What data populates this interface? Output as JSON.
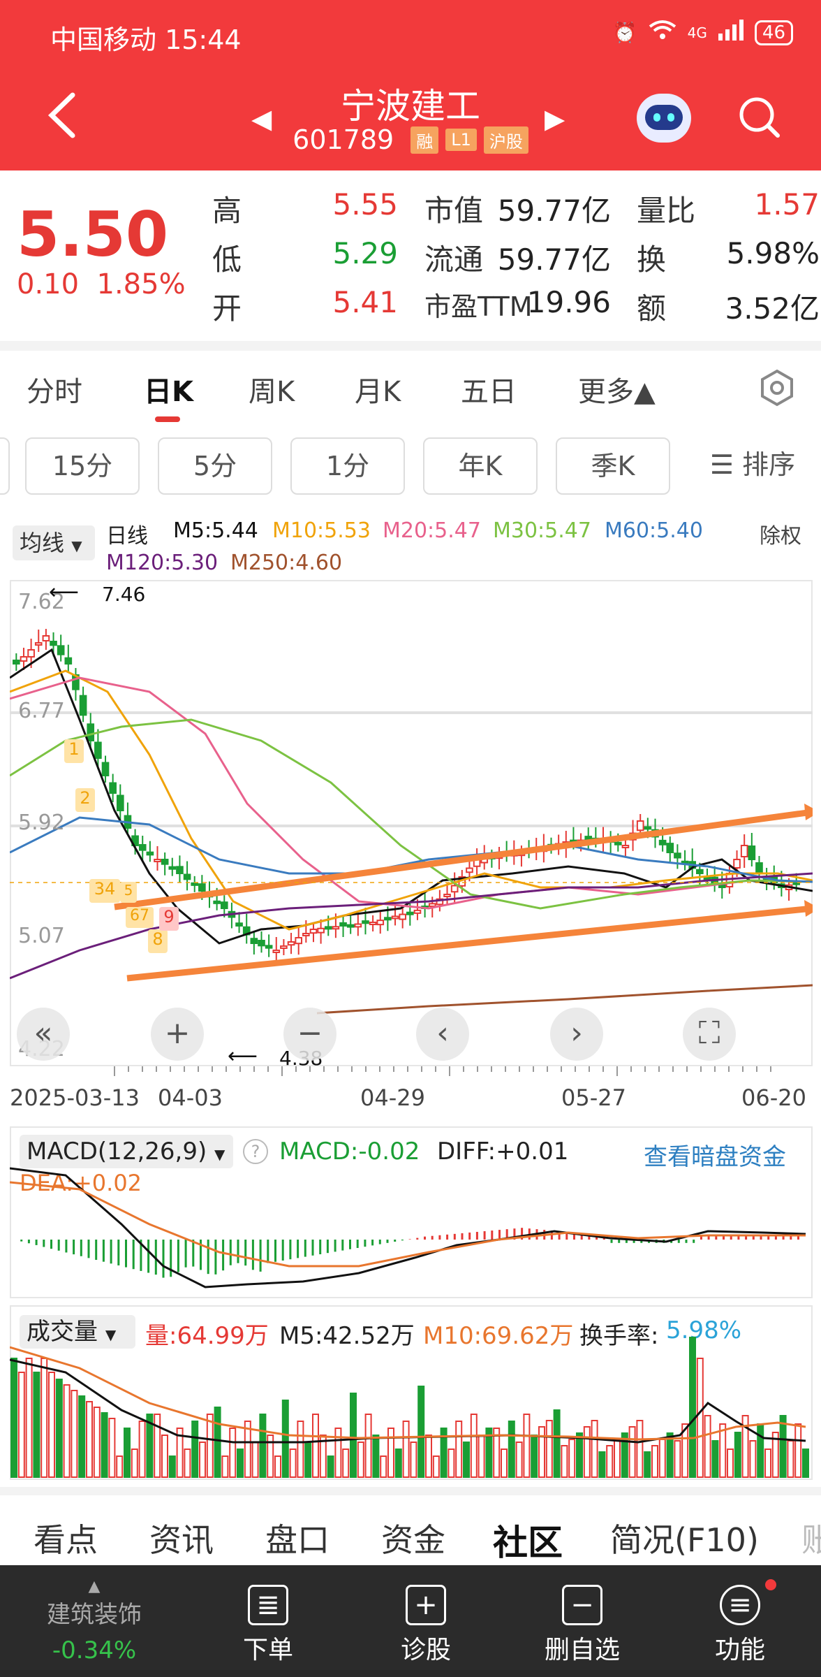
{
  "status_bar": {
    "carrier_time": "中国移动 15:44",
    "network": "4G",
    "battery": "46"
  },
  "header": {
    "stock_name": "宁波建工",
    "stock_code": "601789",
    "tags": [
      "融",
      "L1",
      "沪股"
    ]
  },
  "quote": {
    "price": "5.50",
    "change": "0.10",
    "change_pct": "1.85%",
    "rows": [
      {
        "l1": "高",
        "v1": "5.55",
        "l2": "市值",
        "v2": "59.77亿",
        "l3": "量比",
        "v3": "1.57"
      },
      {
        "l1": "低",
        "v1": "5.29",
        "l2": "流通",
        "v2": "59.77亿",
        "l3": "换",
        "v3": "5.98%"
      },
      {
        "l1": "开",
        "v1": "5.41",
        "l2": "市盈TTM",
        "v2": "19.96",
        "l3": "额",
        "v3": "3.52亿"
      }
    ]
  },
  "period_tabs": [
    "分时",
    "日K",
    "周K",
    "月K",
    "五日",
    "更多▲"
  ],
  "sub_tabs": [
    "15分",
    "5分",
    "1分",
    "年K",
    "季K",
    "☰ 排序"
  ],
  "ma_legend": {
    "selector": "均线",
    "period": "日线",
    "ex_right": "除权",
    "items": [
      {
        "label": "M5:5.44",
        "color": "#111111"
      },
      {
        "label": "M10:5.53",
        "color": "#f0a30a"
      },
      {
        "label": "M20:5.47",
        "color": "#e8618c"
      },
      {
        "label": "M30:5.47",
        "color": "#7cc242"
      },
      {
        "label": "M60:5.40",
        "color": "#3a7bbf"
      },
      {
        "label": "M120:5.30",
        "color": "#6b1f7a"
      },
      {
        "label": "M250:4.60",
        "color": "#a0522d"
      }
    ]
  },
  "kline": {
    "y_labels": [
      "7.62",
      "6.77",
      "5.92",
      "5.07",
      "4.22"
    ],
    "high_annotation": "7.46",
    "low_annotation": "4.38",
    "dates": [
      "2025-03-13",
      "04-03",
      "04-29",
      "05-27",
      "06-20"
    ],
    "markers": [
      "1",
      "2",
      "34",
      "5",
      "67",
      "8",
      "9"
    ]
  },
  "macd": {
    "selector": "MACD(12,26,9)",
    "macd": "MACD:-0.02",
    "diff": "DIFF:+0.01",
    "dea": "DEA:+0.02",
    "link": "查看暗盘资金"
  },
  "volume": {
    "selector": "成交量",
    "vol": "量:64.99万",
    "m5": "M5:42.52万",
    "m10": "M10:69.62万",
    "turnover_label": "换手率:",
    "turnover": "5.98%"
  },
  "bottom_tabs": [
    "看点",
    "资讯",
    "盘口",
    "资金",
    "社区",
    "简况(F10)",
    "账"
  ],
  "bottom_bar": {
    "sector_name": "建筑装饰",
    "sector_change": "-0.34%",
    "items": [
      "下单",
      "诊股",
      "删自选",
      "功能"
    ]
  },
  "colors": {
    "header": "#f23a3c",
    "up": "#e53935",
    "down": "#1a9e34",
    "trend": "#f5843a"
  }
}
